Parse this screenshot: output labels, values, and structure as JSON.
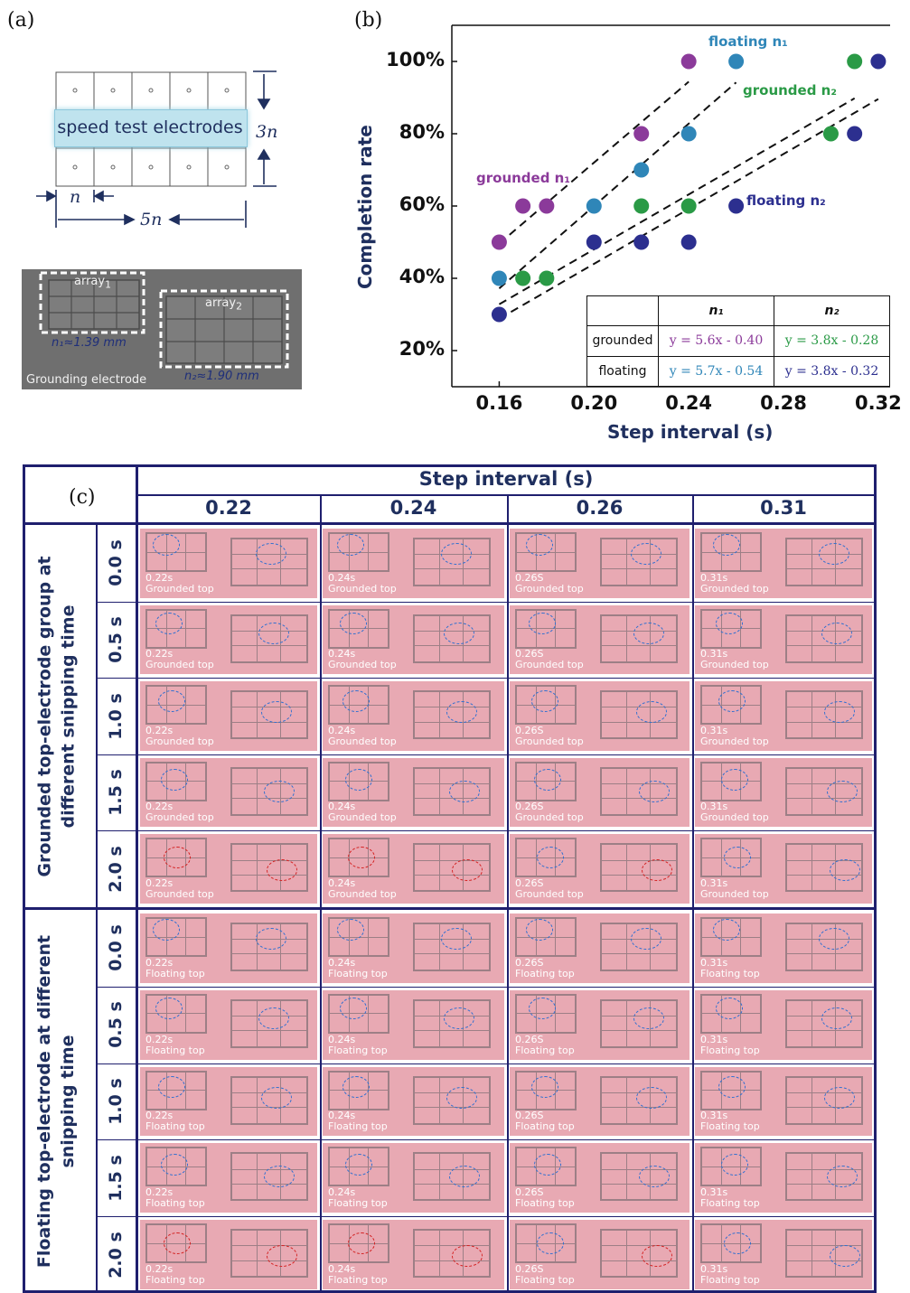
{
  "panel_a": {
    "label": "(a)",
    "band_text": "speed test electrodes",
    "dim_vertical": "3n",
    "dim_n": "n",
    "dim_5n": "5n",
    "photo": {
      "array1": "array",
      "array1_sub": "1",
      "array2": "array",
      "array2_sub": "2",
      "n1_text": "n₁≈1.39 mm",
      "n2_text": "n₂≈1.90 mm",
      "ground_text": "Grounding electrode"
    }
  },
  "panel_b": {
    "label": "(b)",
    "ylabel": "Completion rate",
    "xlabel": "Step interval (s)",
    "annotations": {
      "floating_n1": "floating n₁",
      "grounded_n2": "grounded n₂",
      "grounded_n1": "grounded n₁",
      "floating_n2": "floating n₂"
    },
    "table": {
      "head": [
        "",
        "n₁",
        "n₂"
      ],
      "rows": [
        {
          "label": "grounded",
          "n1": "y = 5.6x - 0.40",
          "n2": "y = 3.8x - 0.28"
        },
        {
          "label": "floating",
          "n1": "y = 5.7x - 0.54",
          "n2": "y = 3.8x - 0.32"
        }
      ]
    }
  },
  "chart_data": {
    "type": "scatter",
    "xlabel": "Step interval (s)",
    "ylabel": "Completion rate",
    "xticks": [
      "0.16",
      "0.20",
      "0.24",
      "0.28",
      "0.32"
    ],
    "yticks": [
      "20%",
      "40%",
      "60%",
      "80%",
      "100%"
    ],
    "xlim": [
      0.14,
      0.325
    ],
    "ylim": [
      0.1,
      1.1
    ],
    "colors": {
      "grounded_n1": "#8b3a9a",
      "floating_n1": "#2f86b8",
      "grounded_n2": "#2a9a46",
      "floating_n2": "#2c2f8f"
    },
    "series": [
      {
        "name": "grounded n₁",
        "key": "grounded_n1",
        "points": [
          [
            0.16,
            0.5
          ],
          [
            0.17,
            0.6
          ],
          [
            0.18,
            0.6
          ],
          [
            0.22,
            0.8
          ],
          [
            0.24,
            1.0
          ]
        ],
        "fit": [
          5.6,
          -0.4
        ],
        "fit_range": [
          0.16,
          0.24
        ]
      },
      {
        "name": "floating n₁",
        "key": "floating_n1",
        "points": [
          [
            0.16,
            0.4
          ],
          [
            0.2,
            0.6
          ],
          [
            0.22,
            0.7
          ],
          [
            0.24,
            0.8
          ],
          [
            0.26,
            1.0
          ]
        ],
        "fit": [
          5.7,
          -0.54
        ],
        "fit_range": [
          0.16,
          0.26
        ]
      },
      {
        "name": "grounded n₂",
        "key": "grounded_n2",
        "points": [
          [
            0.17,
            0.4
          ],
          [
            0.18,
            0.4
          ],
          [
            0.22,
            0.6
          ],
          [
            0.24,
            0.6
          ],
          [
            0.3,
            0.8
          ],
          [
            0.31,
            1.0
          ]
        ],
        "fit": [
          3.8,
          -0.28
        ],
        "fit_range": [
          0.16,
          0.31
        ]
      },
      {
        "name": "floating n₂",
        "key": "floating_n2",
        "points": [
          [
            0.16,
            0.3
          ],
          [
            0.2,
            0.5
          ],
          [
            0.22,
            0.5
          ],
          [
            0.24,
            0.5
          ],
          [
            0.26,
            0.6
          ],
          [
            0.31,
            0.8
          ],
          [
            0.32,
            1.0
          ]
        ],
        "fit": [
          3.8,
          -0.32
        ],
        "fit_range": [
          0.16,
          0.32
        ]
      }
    ]
  },
  "panel_c": {
    "label": "(c)",
    "header": "Step interval (s)",
    "columns": [
      "0.22",
      "0.24",
      "0.26",
      "0.31"
    ],
    "column_captions": [
      "0.22s",
      "0.24s",
      "0.26S",
      "0.31s"
    ],
    "times": [
      "0.0 s",
      "0.5 s",
      "1.0 s",
      "1.5 s",
      "2.0 s"
    ],
    "groups": [
      {
        "label": "Grounded top-electrode group at different snipping time",
        "caption": "Grounded top"
      },
      {
        "label": "Floating top-electrode at different snipping time",
        "caption": "Floating top"
      }
    ]
  }
}
